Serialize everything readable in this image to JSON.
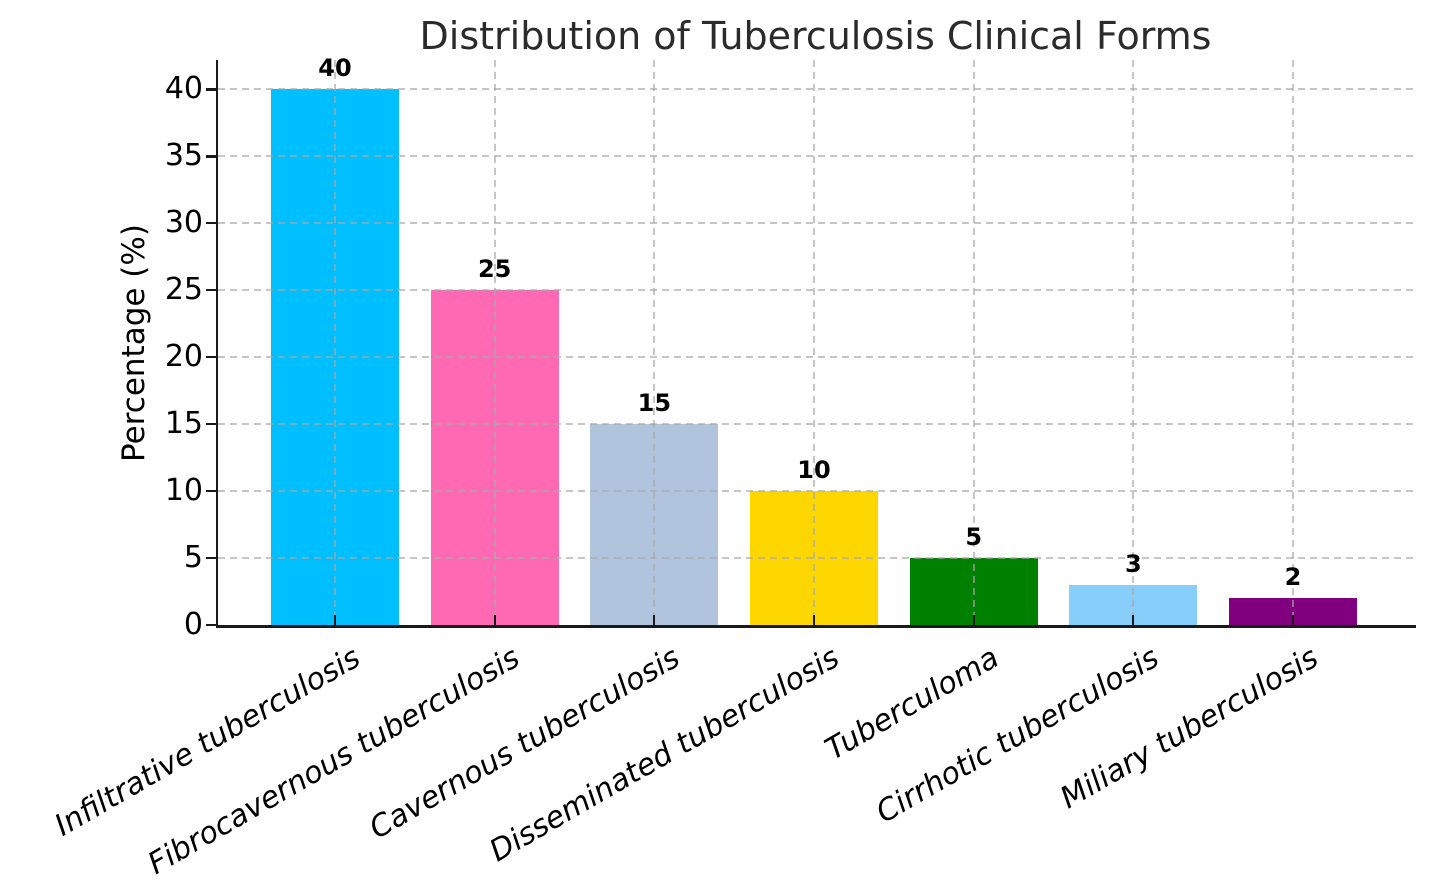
{
  "chart_data": {
    "type": "bar",
    "title": "Distribution of Tuberculosis Clinical Forms",
    "xlabel": "",
    "ylabel": "Percentage (%)",
    "categories": [
      "Infiltrative tuberculosis",
      "Fibrocavernous tuberculosis",
      "Cavernous tuberculosis",
      "Disseminated tuberculosis",
      "Tuberculoma",
      "Cirrhotic tuberculosis",
      "Miliary tuberculosis"
    ],
    "values": [
      40,
      25,
      15,
      10,
      5,
      3,
      2
    ],
    "value_labels": [
      "40",
      "25",
      "15",
      "10",
      "5",
      "3",
      "2"
    ],
    "bar_colors": [
      "#00BFFF",
      "#FF69B4",
      "#B0C4DE",
      "#FFD700",
      "#008000",
      "#87CEFA",
      "#800080"
    ],
    "yticks": [
      0,
      5,
      10,
      15,
      20,
      25,
      30,
      35,
      40
    ],
    "ylim": [
      0,
      42.2
    ],
    "grid": true,
    "grid_style": "dashed",
    "legend_position": "none",
    "x_label_rotation_deg": 30,
    "x_label_style": "italic"
  },
  "colors": {
    "grid": "#A8A8A8",
    "spine": "#1a1a1a",
    "title_text": "#2b2b2b",
    "tick_text": "#000000",
    "background": "#ffffff"
  }
}
